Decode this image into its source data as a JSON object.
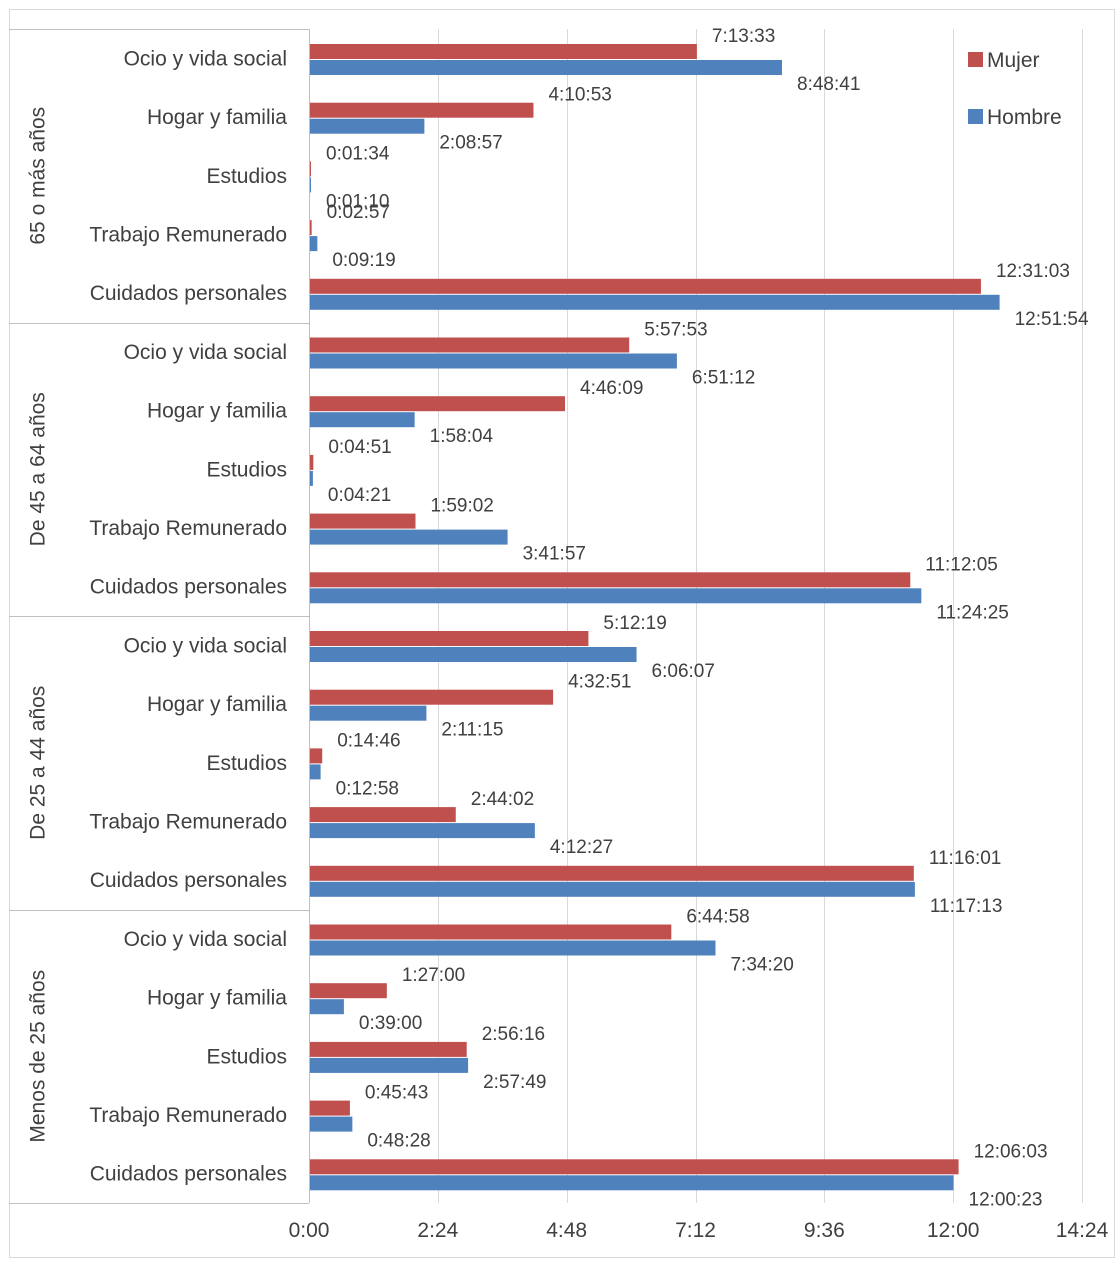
{
  "chart_data": {
    "type": "bar",
    "orientation": "horizontal",
    "title": "",
    "xlabel": "",
    "ylabel": "",
    "xlim": [
      "0:00",
      "14:24"
    ],
    "x_ticks": [
      "0:00",
      "2:24",
      "4:48",
      "7:12",
      "9:36",
      "12:00",
      "14:24"
    ],
    "grid": true,
    "legend_position": "top-right",
    "groups": [
      {
        "label": "65 o más años",
        "categories": [
          "Ocio y vida social",
          "Hogar y familia",
          "Estudios",
          "Trabajo Remunerado",
          "Cuidados personales"
        ],
        "mujer": [
          "7:13:33",
          "4:10:53",
          "0:01:34",
          "0:02:57",
          "12:31:03"
        ],
        "hombre": [
          "8:48:41",
          "2:08:57",
          "0:01:10",
          "0:09:19",
          "12:51:54"
        ]
      },
      {
        "label": "De 45 a 64 años",
        "categories": [
          "Ocio y vida social",
          "Hogar y familia",
          "Estudios",
          "Trabajo Remunerado",
          "Cuidados personales"
        ],
        "mujer": [
          "5:57:53",
          "4:46:09",
          "0:04:51",
          "1:59:02",
          "11:12:05"
        ],
        "hombre": [
          "6:51:12",
          "1:58:04",
          "0:04:21",
          "3:41:57",
          "11:24:25"
        ]
      },
      {
        "label": "De 25 a 44 años",
        "categories": [
          "Ocio y vida social",
          "Hogar y familia",
          "Estudios",
          "Trabajo Remunerado",
          "Cuidados personales"
        ],
        "mujer": [
          "5:12:19",
          "4:32:51",
          "0:14:46",
          "2:44:02",
          "11:16:01"
        ],
        "hombre": [
          "6:06:07",
          "2:11:15",
          "0:12:58",
          "4:12:27",
          "11:17:13"
        ]
      },
      {
        "label": "Menos de 25 años",
        "categories": [
          "Ocio y vida social",
          "Hogar y familia",
          "Estudios",
          "Trabajo Remunerado",
          "Cuidados personales"
        ],
        "mujer": [
          "6:44:58",
          "1:27:00",
          "2:56:16",
          "0:45:43",
          "12:06:03"
        ],
        "hombre": [
          "7:34:20",
          "0:39:00",
          "2:57:49",
          "0:48:28",
          "12:00:23"
        ]
      }
    ],
    "series": [
      {
        "name": "Mujer",
        "key": "mujer",
        "color": "#C0504D"
      },
      {
        "name": "Hombre",
        "key": "hombre",
        "color": "#4F81BD"
      }
    ]
  }
}
